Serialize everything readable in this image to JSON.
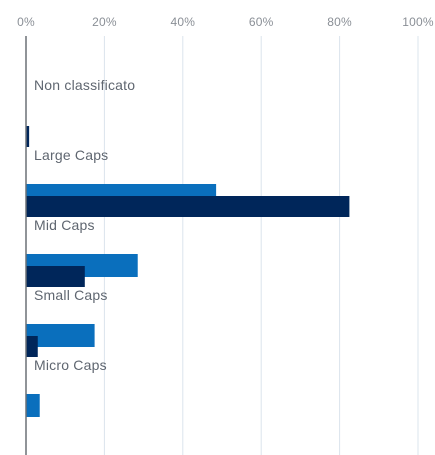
{
  "chart_data": {
    "type": "bar",
    "orientation": "horizontal",
    "x_ticks": [
      "0%",
      "20%",
      "40%",
      "60%",
      "80%",
      "100%"
    ],
    "xlim": [
      0,
      100
    ],
    "grid": true,
    "categories": [
      "Non classificato",
      "Large Caps",
      "Mid Caps",
      "Small Caps",
      "Micro Caps"
    ],
    "series": [
      {
        "color": "#0a6fbd",
        "values": [
          0,
          48.5,
          28.5,
          17.5,
          3.5
        ]
      },
      {
        "color": "#00265a",
        "values": [
          0.8,
          82.5,
          15,
          3,
          0
        ]
      }
    ]
  }
}
